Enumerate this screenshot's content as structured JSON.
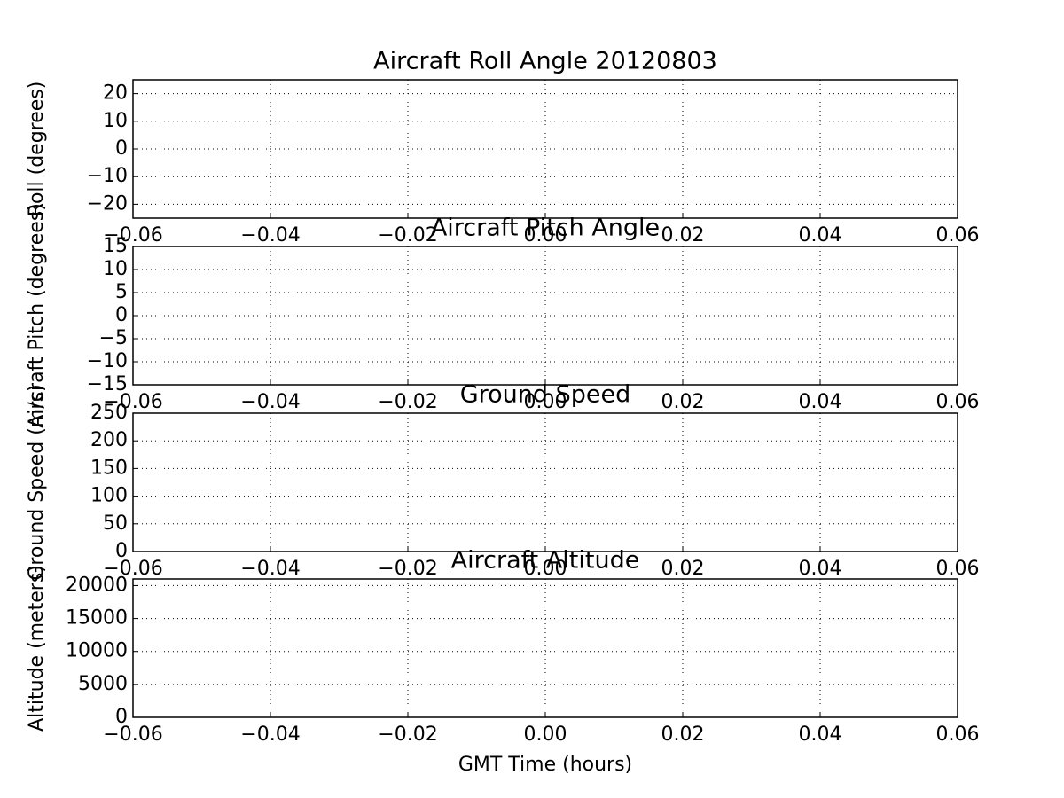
{
  "chart_data": [
    {
      "type": "line",
      "title": "Aircraft Roll Angle 20120803",
      "ylabel": "Roll (degrees)",
      "grid": true,
      "xlim": [
        -0.06,
        0.06
      ],
      "xticks": [
        {
          "value": -0.06,
          "label": "−0.06"
        },
        {
          "value": -0.04,
          "label": "−0.04"
        },
        {
          "value": -0.02,
          "label": "−0.02"
        },
        {
          "value": 0,
          "label": "0.00"
        },
        0.02,
        0.04,
        0.06
      ],
      "ylim": [
        -25,
        25
      ],
      "yticks": [
        {
          "value": -20,
          "label": "−20"
        },
        {
          "value": -10,
          "label": "−10"
        },
        0,
        10,
        20
      ]
    },
    {
      "type": "line",
      "title": "Aircraft Pitch Angle",
      "ylabel": "Aircraft Pitch (degrees)",
      "grid": true,
      "xlim": [
        -0.06,
        0.06
      ],
      "xticks": [
        {
          "value": -0.06,
          "label": "−0.06"
        },
        {
          "value": -0.04,
          "label": "−0.04"
        },
        {
          "value": -0.02,
          "label": "−0.02"
        },
        {
          "value": 0,
          "label": "0.00"
        },
        0.02,
        0.04,
        0.06
      ],
      "ylim": [
        -15,
        15
      ],
      "yticks": [
        {
          "value": -15,
          "label": "−15"
        },
        {
          "value": -10,
          "label": "−10"
        },
        {
          "value": -5,
          "label": "−5"
        },
        0,
        5,
        10,
        15
      ]
    },
    {
      "type": "line",
      "title": "Ground Speed",
      "ylabel": "Ground Speed (m/s)",
      "grid": true,
      "xlim": [
        -0.06,
        0.06
      ],
      "xticks": [
        {
          "value": -0.06,
          "label": "−0.06"
        },
        {
          "value": -0.04,
          "label": "−0.04"
        },
        {
          "value": -0.02,
          "label": "−0.02"
        },
        {
          "value": 0,
          "label": "0.00"
        },
        0.02,
        0.04,
        0.06
      ],
      "ylim": [
        0,
        250
      ],
      "yticks": [
        0,
        50,
        100,
        150,
        200,
        250
      ]
    },
    {
      "type": "line",
      "title": "Aircraft Altitude",
      "ylabel": "Altitude (meters)",
      "xlabel": "GMT Time (hours)",
      "grid": true,
      "xlim": [
        -0.06,
        0.06
      ],
      "xticks": [
        {
          "value": -0.06,
          "label": "−0.06"
        },
        {
          "value": -0.04,
          "label": "−0.04"
        },
        {
          "value": -0.02,
          "label": "−0.02"
        },
        {
          "value": 0,
          "label": "0.00"
        },
        0.02,
        0.04,
        0.06
      ],
      "ylim": [
        0,
        21000
      ],
      "yticks": [
        0,
        5000,
        10000,
        15000,
        20000
      ]
    }
  ]
}
